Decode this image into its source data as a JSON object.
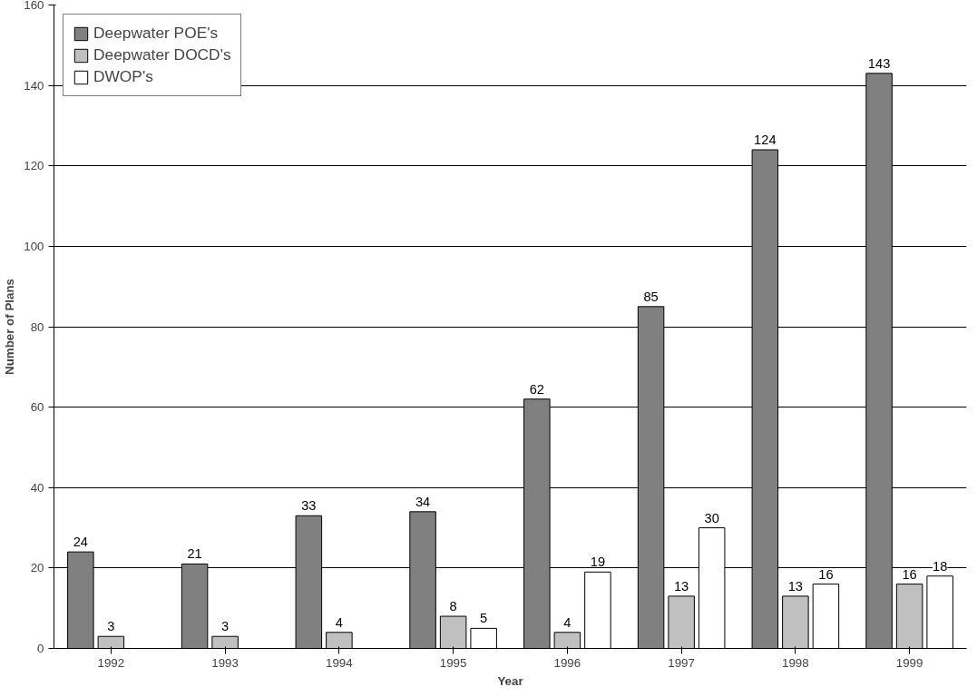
{
  "chart_data": {
    "type": "bar",
    "xlabel": "Year",
    "ylabel": "Number of Plans",
    "categories": [
      "1992",
      "1993",
      "1994",
      "1995",
      "1996",
      "1997",
      "1998",
      "1999"
    ],
    "series": [
      {
        "name": "Deepwater POE's",
        "color": "#808080",
        "values": [
          24,
          21,
          33,
          34,
          62,
          85,
          124,
          143
        ]
      },
      {
        "name": "Deepwater DOCD's",
        "color": "#c0c0c0",
        "values": [
          3,
          3,
          4,
          8,
          4,
          13,
          13,
          16
        ]
      },
      {
        "name": "DWOP's",
        "color": "#ffffff",
        "values": [
          null,
          null,
          null,
          5,
          19,
          30,
          16,
          18
        ]
      }
    ],
    "ylim": [
      0,
      160
    ],
    "yticks": [
      0,
      20,
      40,
      60,
      80,
      100,
      120,
      140,
      160
    ],
    "grid": "y",
    "legend": "top left",
    "data_labels": true
  }
}
